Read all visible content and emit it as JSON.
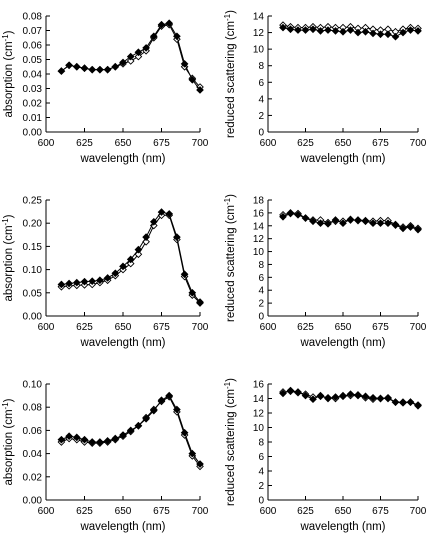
{
  "chart_data": [
    {
      "type": "line",
      "panel": "top-left",
      "xlabel": "wavelength (nm)",
      "ylabel": "absorption (cm",
      "ylabel_sup": "-1",
      "ylabel_end": ")",
      "xlim": [
        600,
        700
      ],
      "ylim": [
        0,
        0.08
      ],
      "xticks": [
        600,
        625,
        650,
        675,
        700
      ],
      "yticks": [
        0.0,
        0.01,
        0.02,
        0.03,
        0.04,
        0.05,
        0.06,
        0.07,
        0.08
      ],
      "ytick_labels": [
        "0.00",
        "0.01",
        "0.02",
        "0.03",
        "0.04",
        "0.05",
        "0.06",
        "0.07",
        "0.08"
      ],
      "grid": false,
      "x": [
        610,
        615,
        620,
        625,
        630,
        635,
        640,
        645,
        650,
        655,
        660,
        665,
        670,
        675,
        680,
        685,
        690,
        695,
        700
      ],
      "series": [
        {
          "marker": "filled-diamond",
          "values": [
            0.042,
            0.046,
            0.045,
            0.044,
            0.043,
            0.043,
            0.043,
            0.045,
            0.048,
            0.052,
            0.055,
            0.058,
            0.066,
            0.074,
            0.075,
            0.066,
            0.047,
            0.036,
            0.029
          ]
        },
        {
          "marker": "open-diamond",
          "values": [
            0.042,
            0.046,
            0.045,
            0.044,
            0.043,
            0.043,
            0.043,
            0.045,
            0.047,
            0.049,
            0.052,
            0.056,
            0.065,
            0.073,
            0.074,
            0.064,
            0.045,
            0.037,
            0.031
          ]
        }
      ]
    },
    {
      "type": "line",
      "panel": "top-right",
      "xlabel": "wavelength (nm)",
      "ylabel": "reduced scattering (cm",
      "ylabel_sup": "-1",
      "ylabel_end": ")",
      "xlim": [
        600,
        700
      ],
      "ylim": [
        0,
        14
      ],
      "xticks": [
        600,
        625,
        650,
        675,
        700
      ],
      "yticks": [
        0,
        2,
        4,
        6,
        8,
        10,
        12,
        14
      ],
      "ytick_labels": [
        "0",
        "2",
        "4",
        "6",
        "8",
        "10",
        "12",
        "14"
      ],
      "grid": false,
      "x": [
        610,
        615,
        620,
        625,
        630,
        635,
        640,
        645,
        650,
        655,
        660,
        665,
        670,
        675,
        680,
        685,
        690,
        695,
        700
      ],
      "series": [
        {
          "marker": "filled-diamond",
          "values": [
            12.6,
            12.4,
            12.3,
            12.3,
            12.4,
            12.2,
            12.3,
            12.2,
            12.1,
            12.3,
            12.0,
            12.1,
            11.9,
            11.8,
            11.8,
            11.5,
            12.0,
            12.3,
            12.2
          ]
        },
        {
          "marker": "open-diamond",
          "values": [
            12.9,
            12.7,
            12.6,
            12.6,
            12.7,
            12.6,
            12.7,
            12.6,
            12.6,
            12.7,
            12.5,
            12.6,
            12.4,
            12.3,
            12.4,
            12.1,
            12.4,
            12.6,
            12.5
          ]
        }
      ]
    },
    {
      "type": "line",
      "panel": "middle-left",
      "xlabel": "wavelength (nm)",
      "ylabel": "absorption (cm",
      "ylabel_sup": "-1",
      "ylabel_end": ")",
      "xlim": [
        600,
        700
      ],
      "ylim": [
        0,
        0.25
      ],
      "xticks": [
        600,
        625,
        650,
        675,
        700
      ],
      "yticks": [
        0.0,
        0.05,
        0.1,
        0.15,
        0.2,
        0.25
      ],
      "ytick_labels": [
        "0.00",
        "0.05",
        "0.10",
        "0.15",
        "0.20",
        "0.25"
      ],
      "grid": false,
      "x": [
        610,
        615,
        620,
        625,
        630,
        635,
        640,
        645,
        650,
        655,
        660,
        665,
        670,
        675,
        680,
        685,
        690,
        695,
        700
      ],
      "series": [
        {
          "marker": "filled-diamond",
          "values": [
            0.068,
            0.07,
            0.072,
            0.074,
            0.075,
            0.077,
            0.082,
            0.092,
            0.107,
            0.122,
            0.143,
            0.17,
            0.203,
            0.224,
            0.22,
            0.17,
            0.09,
            0.05,
            0.03
          ]
        },
        {
          "marker": "open-diamond",
          "values": [
            0.063,
            0.065,
            0.066,
            0.067,
            0.068,
            0.072,
            0.077,
            0.087,
            0.1,
            0.113,
            0.133,
            0.16,
            0.195,
            0.217,
            0.217,
            0.165,
            0.085,
            0.045,
            0.028
          ]
        }
      ]
    },
    {
      "type": "line",
      "panel": "middle-right",
      "xlabel": "wavelength (nm)",
      "ylabel": "reduced scattering (cm",
      "ylabel_sup": "-1",
      "ylabel_end": ")",
      "xlim": [
        600,
        700
      ],
      "ylim": [
        0,
        18
      ],
      "xticks": [
        600,
        625,
        650,
        675,
        700
      ],
      "yticks": [
        0,
        2,
        4,
        6,
        8,
        10,
        12,
        14,
        16,
        18
      ],
      "ytick_labels": [
        "0",
        "2",
        "4",
        "6",
        "8",
        "10",
        "12",
        "14",
        "16",
        "18"
      ],
      "grid": false,
      "x": [
        610,
        615,
        620,
        625,
        630,
        635,
        640,
        645,
        650,
        655,
        660,
        665,
        670,
        675,
        680,
        685,
        690,
        695,
        700
      ],
      "series": [
        {
          "marker": "filled-diamond",
          "values": [
            15.4,
            15.9,
            15.7,
            15.2,
            14.7,
            14.4,
            14.3,
            14.9,
            14.4,
            15.0,
            14.8,
            14.7,
            14.4,
            14.4,
            14.4,
            14.1,
            13.6,
            13.8,
            13.4
          ]
        },
        {
          "marker": "open-diamond",
          "values": [
            15.7,
            16.0,
            15.9,
            15.2,
            14.9,
            14.9,
            14.5,
            14.7,
            14.7,
            14.9,
            14.9,
            14.8,
            14.7,
            14.8,
            14.8,
            14.2,
            13.8,
            14.0,
            13.6
          ]
        }
      ]
    },
    {
      "type": "line",
      "panel": "bottom-left",
      "xlabel": "wavelength (nm)",
      "ylabel": "absorption (cm",
      "ylabel_sup": "-1",
      "ylabel_end": ")",
      "xlim": [
        600,
        700
      ],
      "ylim": [
        0,
        0.1
      ],
      "xticks": [
        600,
        625,
        650,
        675,
        700
      ],
      "yticks": [
        0.0,
        0.02,
        0.04,
        0.06,
        0.08,
        0.1
      ],
      "ytick_labels": [
        "0.00",
        "0.02",
        "0.04",
        "0.06",
        "0.08",
        "0.10"
      ],
      "grid": false,
      "x": [
        610,
        615,
        620,
        625,
        630,
        635,
        640,
        645,
        650,
        655,
        660,
        665,
        670,
        675,
        680,
        685,
        690,
        695,
        700
      ],
      "series": [
        {
          "marker": "filled-diamond",
          "values": [
            0.052,
            0.055,
            0.054,
            0.052,
            0.05,
            0.05,
            0.051,
            0.053,
            0.056,
            0.06,
            0.064,
            0.07,
            0.077,
            0.086,
            0.09,
            0.078,
            0.058,
            0.04,
            0.031
          ]
        },
        {
          "marker": "open-diamond",
          "values": [
            0.05,
            0.053,
            0.052,
            0.05,
            0.049,
            0.049,
            0.05,
            0.052,
            0.055,
            0.059,
            0.064,
            0.071,
            0.078,
            0.085,
            0.089,
            0.076,
            0.056,
            0.038,
            0.029
          ]
        }
      ]
    },
    {
      "type": "line",
      "panel": "bottom-right",
      "xlabel": "wavelength (nm)",
      "ylabel": "reduced scattering (cm",
      "ylabel_sup": "-1",
      "ylabel_end": ")",
      "xlim": [
        600,
        700
      ],
      "ylim": [
        0,
        16
      ],
      "xticks": [
        600,
        625,
        650,
        675,
        700
      ],
      "yticks": [
        0,
        2,
        4,
        6,
        8,
        10,
        12,
        14,
        16
      ],
      "ytick_labels": [
        "0",
        "2",
        "4",
        "6",
        "8",
        "10",
        "12",
        "14",
        "16"
      ],
      "grid": false,
      "x": [
        610,
        615,
        620,
        625,
        630,
        635,
        640,
        645,
        650,
        655,
        660,
        665,
        670,
        675,
        680,
        685,
        690,
        695,
        700
      ],
      "series": [
        {
          "marker": "filled-diamond",
          "values": [
            14.7,
            15.1,
            14.9,
            14.4,
            13.9,
            14.4,
            14.0,
            14.2,
            14.3,
            14.6,
            14.5,
            14.3,
            14.1,
            14.0,
            14.1,
            13.5,
            13.4,
            13.5,
            13.0
          ]
        },
        {
          "marker": "open-diamond",
          "values": [
            14.9,
            15.0,
            14.8,
            14.6,
            14.2,
            14.3,
            14.1,
            14.0,
            14.4,
            14.4,
            14.4,
            14.1,
            13.9,
            14.0,
            14.0,
            13.5,
            13.5,
            13.5,
            13.1
          ]
        }
      ]
    }
  ]
}
